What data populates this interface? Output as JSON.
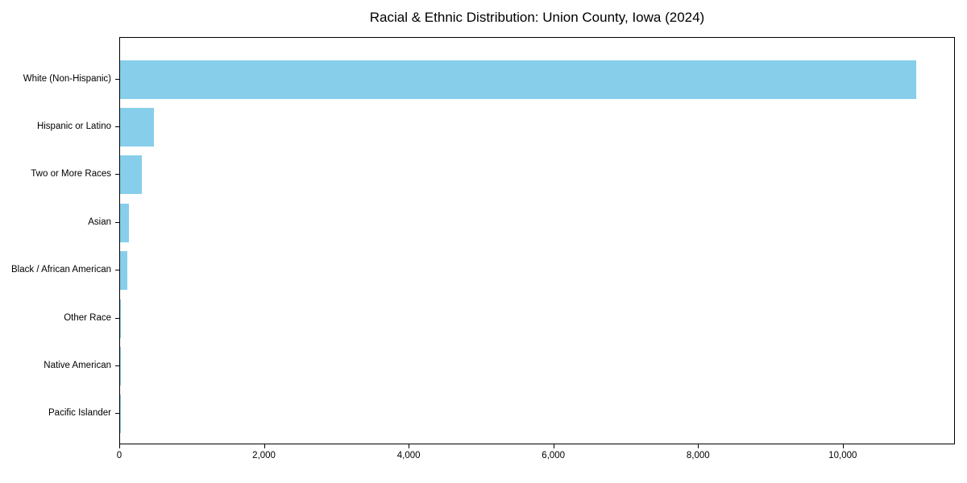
{
  "chart_data": {
    "type": "bar",
    "orientation": "horizontal",
    "title": "Racial & Ethnic Distribution: Union County, Iowa (2024)",
    "categories": [
      "White (Non-Hispanic)",
      "Hispanic or Latino",
      "Two or More Races",
      "Asian",
      "Black / African American",
      "Other Race",
      "Native American",
      "Pacific Islander"
    ],
    "values": [
      11000,
      470,
      300,
      120,
      100,
      15,
      8,
      3
    ],
    "bar_color": "#87CEEB",
    "xlabel": "",
    "ylabel": "",
    "xlim": [
      0,
      11550
    ],
    "xticks": [
      0,
      2000,
      4000,
      6000,
      8000,
      10000
    ],
    "xtick_labels": [
      "0",
      "2,000",
      "4,000",
      "6,000",
      "8,000",
      "10,000"
    ],
    "grid": false,
    "legend": null,
    "background_color": "#ffffff",
    "spine_color": "#000000"
  }
}
